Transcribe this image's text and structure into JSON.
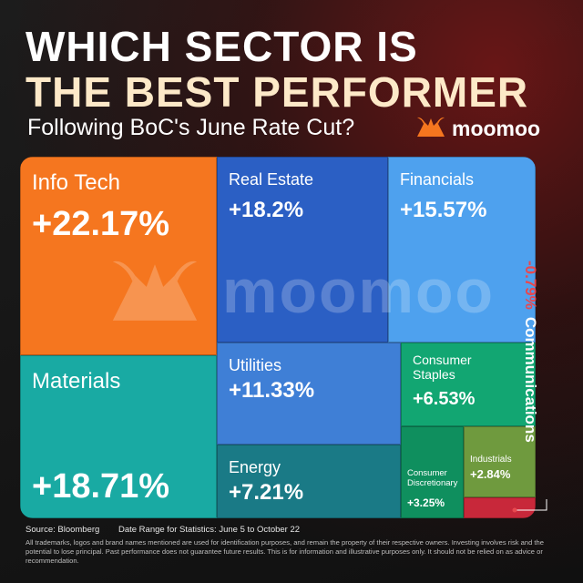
{
  "header": {
    "title_line1": "WHICH SECTOR IS",
    "title_line2": "THE BEST PERFORMER",
    "subtitle": "Following BoC's June Rate Cut?",
    "logo_text": "moomoo"
  },
  "watermark_text": "moomoo",
  "chart_data": {
    "type": "treemap",
    "tiles": [
      {
        "name": "Info Tech",
        "value": "+22.17%",
        "change": 22.17,
        "color": "#f5761f"
      },
      {
        "name": "Real Estate",
        "value": "+18.2%",
        "change": 18.2,
        "color": "#2b5fc4"
      },
      {
        "name": "Financials",
        "value": "+15.57%",
        "change": 15.57,
        "color": "#4ea1ee"
      },
      {
        "name": "Materials",
        "value": "+18.71%",
        "change": 18.71,
        "color": "#19aaa3"
      },
      {
        "name": "Utilities",
        "value": "+11.33%",
        "change": 11.33,
        "color": "#3f7fd6"
      },
      {
        "name": "Consumer Staples",
        "value": "+6.53%",
        "change": 6.53,
        "color": "#12a672"
      },
      {
        "name": "Energy",
        "value": "+7.21%",
        "change": 7.21,
        "color": "#1a7a86"
      },
      {
        "name": "Consumer Discretionary",
        "value": "+3.25%",
        "change": 3.25,
        "color": "#0f8f5e"
      },
      {
        "name": "Industrials",
        "value": "+2.84%",
        "change": 2.84,
        "color": "#6f9a3e"
      },
      {
        "name": "Communications",
        "value": "-0.79%",
        "change": -0.79,
        "color": "#c8283a"
      }
    ]
  },
  "footer": {
    "source": "Source: Bloomberg",
    "date_range": "Date Range for Statistics: June 5 to October 22",
    "disclaimer": "All trademarks, logos and brand names mentioned are used for identification purposes, and remain the property of their respective owners. Investing involves risk and the potential to lose principal. Past performance does not guarantee future results. This is for information and illustrative purposes only. It should not be relied on as advice or recommendation."
  }
}
